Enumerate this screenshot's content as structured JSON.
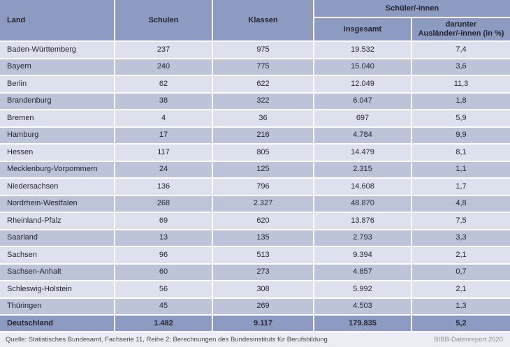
{
  "table": {
    "headers": {
      "land": "Land",
      "schulen": "Schulen",
      "klassen": "Klassen",
      "schueler_group": "Schüler/-innen",
      "insgesamt": "insgesamt",
      "darunter_line1": "darunter",
      "darunter_line2": "Ausländer/-innen (in %)"
    },
    "rows": [
      {
        "land": "Baden-Württemberg",
        "schulen": "237",
        "klassen": "975",
        "insgesamt": "19.532",
        "auslaender": "7,4"
      },
      {
        "land": "Bayern",
        "schulen": "240",
        "klassen": "775",
        "insgesamt": "15.040",
        "auslaender": "3,6"
      },
      {
        "land": "Berlin",
        "schulen": "62",
        "klassen": "622",
        "insgesamt": "12.049",
        "auslaender": "11,3"
      },
      {
        "land": "Brandenburg",
        "schulen": "38",
        "klassen": "322",
        "insgesamt": "6.047",
        "auslaender": "1,8"
      },
      {
        "land": "Bremen",
        "schulen": "4",
        "klassen": "36",
        "insgesamt": "697",
        "auslaender": "5,9"
      },
      {
        "land": "Hamburg",
        "schulen": "17",
        "klassen": "216",
        "insgesamt": "4.784",
        "auslaender": "9,9"
      },
      {
        "land": "Hessen",
        "schulen": "117",
        "klassen": "805",
        "insgesamt": "14.479",
        "auslaender": "8,1"
      },
      {
        "land": "Mecklenburg-Vorpommern",
        "schulen": "24",
        "klassen": "125",
        "insgesamt": "2.315",
        "auslaender": "1,1"
      },
      {
        "land": "Niedersachsen",
        "schulen": "136",
        "klassen": "796",
        "insgesamt": "14.608",
        "auslaender": "1,7"
      },
      {
        "land": "Nordrhein-Westfalen",
        "schulen": "268",
        "klassen": "2.327",
        "insgesamt": "48.870",
        "auslaender": "4,8"
      },
      {
        "land": "Rheinland-Pfalz",
        "schulen": "69",
        "klassen": "620",
        "insgesamt": "13.876",
        "auslaender": "7,5"
      },
      {
        "land": "Saarland",
        "schulen": "13",
        "klassen": "135",
        "insgesamt": "2.793",
        "auslaender": "3,3"
      },
      {
        "land": "Sachsen",
        "schulen": "96",
        "klassen": "513",
        "insgesamt": "9.394",
        "auslaender": "2,1"
      },
      {
        "land": "Sachsen-Anhalt",
        "schulen": "60",
        "klassen": "273",
        "insgesamt": "4.857",
        "auslaender": "0,7"
      },
      {
        "land": "Schleswig-Holstein",
        "schulen": "56",
        "klassen": "308",
        "insgesamt": "5.992",
        "auslaender": "2,1"
      },
      {
        "land": "Thüringen",
        "schulen": "45",
        "klassen": "269",
        "insgesamt": "4.503",
        "auslaender": "1,3"
      }
    ],
    "total": {
      "land": "Deutschland",
      "schulen": "1.482",
      "klassen": "9.117",
      "insgesamt": "179.835",
      "auslaender": "5,2"
    }
  },
  "footer": {
    "source": "Quelle: Statistisches Bundesamt, Fachserie 11, Reihe 2; Berechnungen des Bundesinstituts für Berufsbildung",
    "report": "BIBB-Datenreport 2020"
  },
  "colors": {
    "header_bg": "#8d9ac1",
    "row_light": "#dde1ed",
    "row_dark": "#bdc4da",
    "total_bg": "#8d9ac1",
    "footer_bg": "#ecedf4",
    "text": "#23242e",
    "footer_text": "#43474f",
    "footer_right_text": "#8d909b",
    "separator": "#ffffff"
  }
}
